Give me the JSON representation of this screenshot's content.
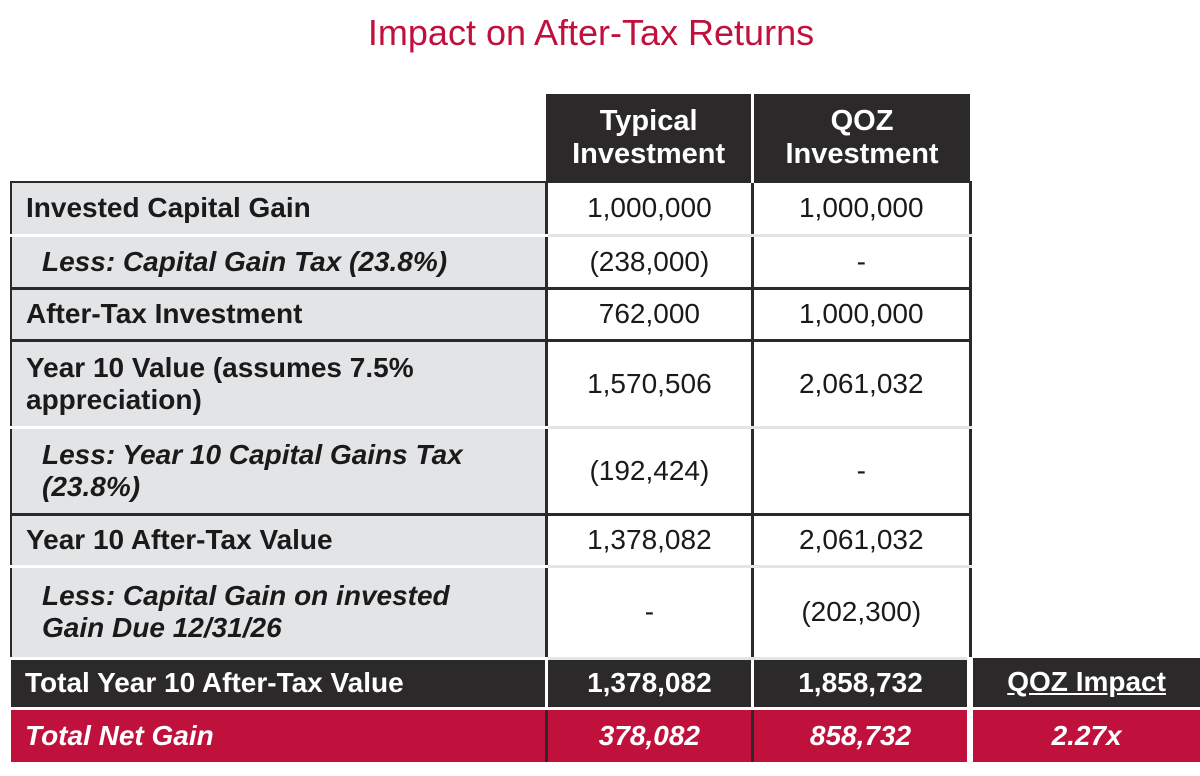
{
  "title": "Impact on After-Tax Returns",
  "colors": {
    "accent": "#c0103c",
    "dark": "#2b2929",
    "label_bg": "#e3e4e6"
  },
  "header": {
    "col1": [
      "Typical",
      "Investment"
    ],
    "col2": [
      "QOZ",
      "Investment"
    ]
  },
  "rows": [
    {
      "label": "Invested Capital Gain",
      "typical": "1,000,000",
      "qoz": "1,000,000"
    },
    {
      "label": "Less: Capital Gain Tax (23.8%)",
      "typical": "(238,000)",
      "qoz": "-"
    },
    {
      "label": "After-Tax Investment",
      "typical": "762,000",
      "qoz": "1,000,000"
    },
    {
      "label": [
        "Year 10 Value (assumes 7.5%",
        "appreciation)"
      ],
      "typical": "1,570,506",
      "qoz": "2,061,032"
    },
    {
      "label": [
        "Less: Year 10 Capital Gains Tax",
        "(23.8%)"
      ],
      "typical": "(192,424)",
      "qoz": "-"
    },
    {
      "label": "Year 10 After-Tax Value",
      "typical": "1,378,082",
      "qoz": "2,061,032"
    },
    {
      "label": [
        "Less: Capital Gain on invested",
        "Gain Due 12/31/26"
      ],
      "typical": "-",
      "qoz": "(202,300)"
    }
  ],
  "total": {
    "label": "Total Year 10 After-Tax Value",
    "typical": "1,378,082",
    "qoz": "1,858,732",
    "impact_label": "QOZ Impact"
  },
  "net_gain": {
    "label": "Total Net Gain",
    "typical": "378,082",
    "qoz": "858,732",
    "impact_value": "2.27x"
  }
}
